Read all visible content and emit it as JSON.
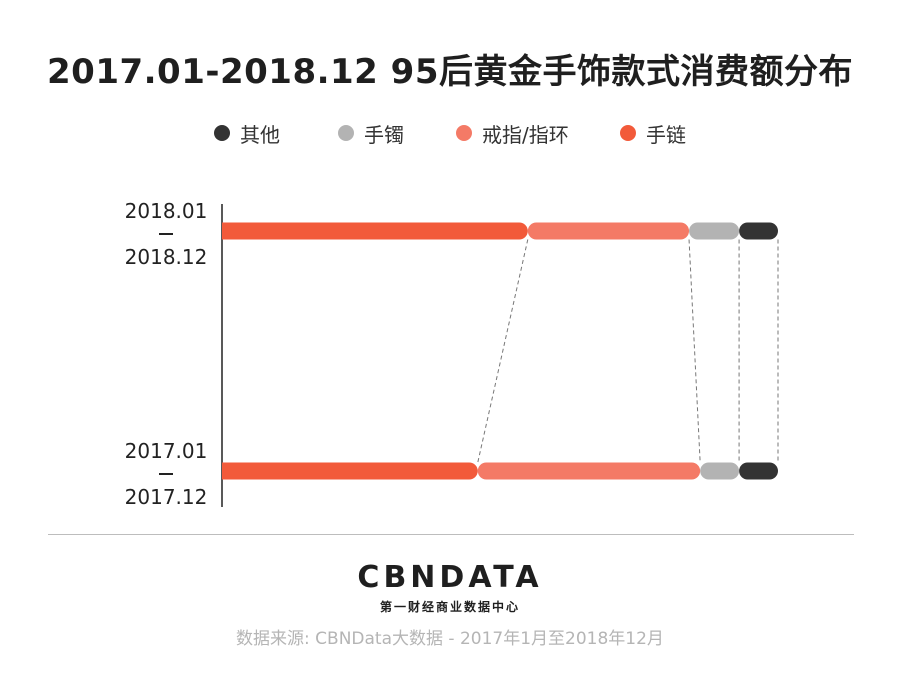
{
  "title": "2017.01-2018.12 95后黄金手饰款式消费额分布",
  "legend": [
    {
      "label": "其他",
      "color": "#333333"
    },
    {
      "label": "手镯",
      "color": "#b3b3b3"
    },
    {
      "label": "戒指/指环",
      "color": "#f47a66"
    },
    {
      "label": "手链",
      "color": "#f25a3a"
    }
  ],
  "rows": {
    "top": {
      "start": "2018.01",
      "end": "2018.12"
    },
    "bottom": {
      "start": "2017.01",
      "end": "2017.12"
    }
  },
  "chart_data": {
    "type": "bar",
    "stacked": true,
    "orientation": "horizontal",
    "categories": [
      "2018.01—2018.12",
      "2017.01—2017.12"
    ],
    "series": [
      {
        "name": "手链",
        "color": "#f25a3a",
        "values": [
          0.55,
          0.46
        ]
      },
      {
        "name": "戒指/指环",
        "color": "#f47a66",
        "values": [
          0.29,
          0.4
        ]
      },
      {
        "name": "手镯",
        "color": "#b3b3b3",
        "values": [
          0.09,
          0.07
        ]
      },
      {
        "name": "其他",
        "color": "#333333",
        "values": [
          0.07,
          0.07
        ]
      }
    ],
    "xlim": [
      0,
      1
    ]
  },
  "logo": {
    "text": "CBNDATA",
    "sub": "第一财经商业数据中心"
  },
  "source": "数据来源: CBNData大数据 - 2017年1月至2018年12月"
}
